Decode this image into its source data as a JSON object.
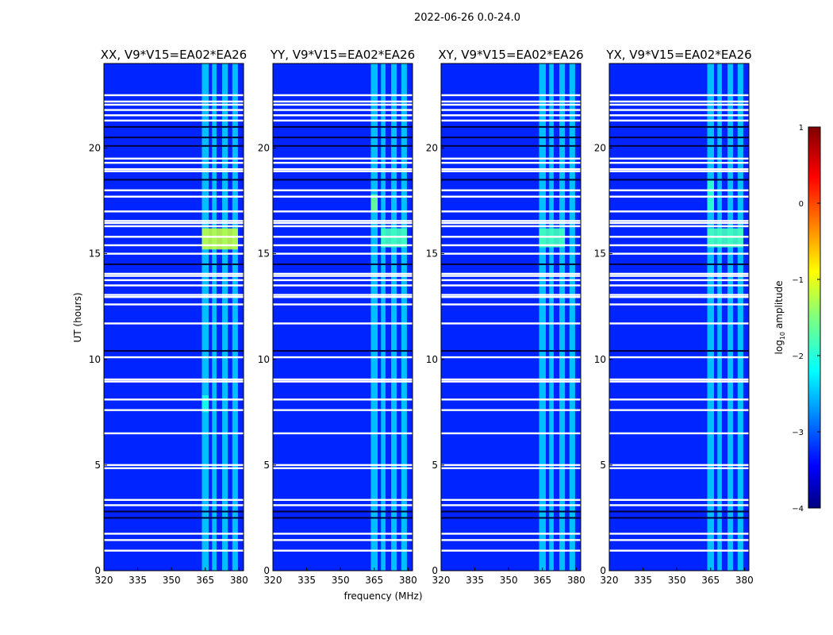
{
  "chart_data": {
    "type": "heatmap",
    "suptitle": "2022-06-26 0.0-24.0",
    "xlabel": "frequency (MHz)",
    "ylabel": "UT (hours)",
    "xlim": [
      320,
      382
    ],
    "ylim": [
      0,
      24
    ],
    "xticks": [
      320,
      335,
      350,
      365,
      380
    ],
    "yticks": [
      0,
      5,
      10,
      15,
      20
    ],
    "colormap": "jet",
    "colorbar": {
      "label": "log10 amplitude",
      "label_main": "log",
      "label_sub": "10",
      "label_rest": " amplitude",
      "min": -4,
      "max": 1,
      "ticks": [
        1,
        0,
        -1,
        -2,
        -3,
        -4
      ]
    },
    "background_log_amplitude": -3.2,
    "rfi_band_mhz": [
      [
        363.5,
        366.5
      ],
      [
        368,
        370
      ],
      [
        372.5,
        375
      ],
      [
        377,
        379.5
      ]
    ],
    "rfi_band_log_amplitude": -2.3,
    "flagged_rows_hours": [
      0.95,
      1.45,
      1.75,
      3.1,
      3.35,
      4.85,
      5.0,
      6.5,
      7.6,
      8.1,
      8.95,
      9.05,
      10.1,
      11.7,
      12.6,
      12.95,
      13.05,
      13.5,
      13.75,
      13.95,
      14.05,
      15.0,
      15.4,
      15.8,
      16.3,
      16.45,
      16.55,
      17.0,
      17.7,
      18.0,
      18.9,
      19.0,
      19.3,
      19.5,
      21.3,
      21.55,
      21.8,
      22.05,
      22.2,
      22.5
    ],
    "dark_rows_hours": [
      2.5,
      2.8,
      10.4,
      14.5,
      18.5,
      20.1,
      20.5,
      21.0
    ],
    "panels": [
      {
        "title": "XX, V9*V15=EA02*EA26",
        "hotspots": [
          {
            "mhz": [
              363.5,
              379.5
            ],
            "hours": [
              15.2,
              16.2
            ],
            "log_amplitude": -1.2
          },
          {
            "mhz": [
              363.5,
              366.5
            ],
            "hours": [
              7.5,
              8.3
            ],
            "log_amplitude": -2.0
          }
        ]
      },
      {
        "title": "YY, V9*V15=EA02*EA26",
        "hotspots": [
          {
            "mhz": [
              363.5,
              366.5
            ],
            "hours": [
              17.0,
              17.8
            ],
            "log_amplitude": -1.6
          },
          {
            "mhz": [
              368,
              379.5
            ],
            "hours": [
              15.3,
              16.2
            ],
            "log_amplitude": -1.8
          }
        ]
      },
      {
        "title": "XY, V9*V15=EA02*EA26",
        "hotspots": [
          {
            "mhz": [
              363.5,
              375
            ],
            "hours": [
              15.3,
              16.2
            ],
            "log_amplitude": -1.8
          }
        ]
      },
      {
        "title": "YX, V9*V15=EA02*EA26",
        "hotspots": [
          {
            "mhz": [
              363.5,
              379.5
            ],
            "hours": [
              15.3,
              16.2
            ],
            "log_amplitude": -1.8
          },
          {
            "mhz": [
              363.5,
              366.5
            ],
            "hours": [
              17.0,
              18.5
            ],
            "log_amplitude": -1.9
          }
        ]
      }
    ]
  }
}
